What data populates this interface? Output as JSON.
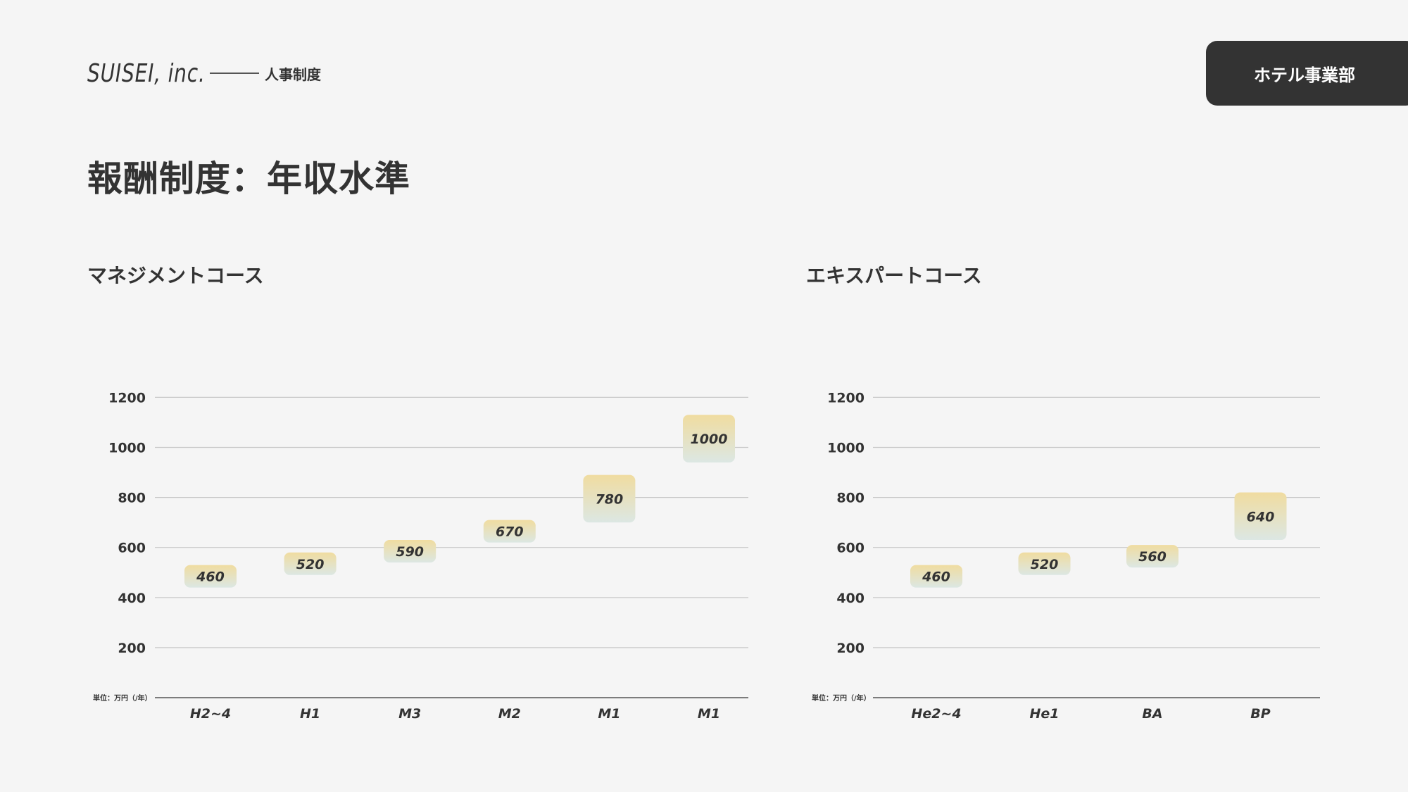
{
  "header": {
    "logo": "SUISEI, inc.",
    "section": "人事制度",
    "department": "ホテル事業部"
  },
  "page_title": "報酬制度：年収水準",
  "colors": {
    "background": "#f5f5f5",
    "text": "#333333",
    "badge": "#333333",
    "bar_top": "#f0dca0",
    "bar_bottom": "#dce7e3",
    "grid": "#c8c8c8",
    "axis": "#555555"
  },
  "chart_data": [
    {
      "type": "bar",
      "title": "マネジメントコース",
      "unit": "単位：万円（/年）",
      "yticks": [
        200,
        400,
        600,
        800,
        1000,
        1200
      ],
      "ylim": [
        0,
        1200
      ],
      "grid": true,
      "categories": [
        "H2~4",
        "H1",
        "M3",
        "M2",
        "M1",
        "M1"
      ],
      "values": [
        460,
        520,
        590,
        670,
        780,
        1000
      ],
      "ranges": [
        [
          440,
          530
        ],
        [
          490,
          580
        ],
        [
          540,
          630
        ],
        [
          620,
          710
        ],
        [
          700,
          890
        ],
        [
          940,
          1130
        ]
      ]
    },
    {
      "type": "bar",
      "title": "エキスパートコース",
      "unit": "単位：万円（/年）",
      "yticks": [
        200,
        400,
        600,
        800,
        1000,
        1200
      ],
      "ylim": [
        0,
        1200
      ],
      "grid": true,
      "categories": [
        "He2~4",
        "He1",
        "BA",
        "BP"
      ],
      "values": [
        460,
        520,
        560,
        640
      ],
      "ranges": [
        [
          440,
          530
        ],
        [
          490,
          580
        ],
        [
          520,
          610
        ],
        [
          630,
          820
        ]
      ]
    }
  ]
}
